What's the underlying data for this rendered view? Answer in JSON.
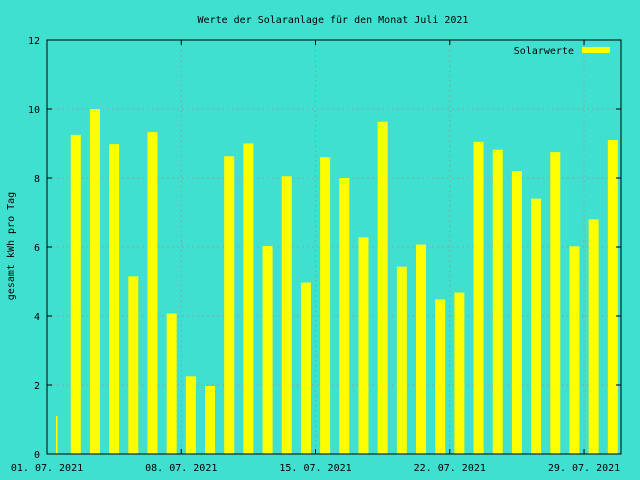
{
  "chart_data": {
    "type": "bar",
    "title": "Werte der Solaranlage für den Monat Juli 2021",
    "xlabel": "",
    "ylabel": "gesamt kWh pro Tag",
    "ylim": [
      0,
      12
    ],
    "yticks": [
      "0",
      "2",
      "4",
      "6",
      "8",
      "10",
      "12"
    ],
    "xtick_labels": [
      "01. 07. 2021",
      "08. 07. 2021",
      "15. 07. 2021",
      "22. 07. 2021",
      "29. 07. 2021"
    ],
    "grid": true,
    "legend_position": "top-right",
    "bar_color": "#ffff00",
    "background_color": "#40e0d0",
    "series": [
      {
        "name": "Solarwerte",
        "x": [
          "01. 07. 2021",
          "02. 07. 2021",
          "03. 07. 2021",
          "04. 07. 2021",
          "05. 07. 2021",
          "06. 07. 2021",
          "07. 07. 2021",
          "08. 07. 2021",
          "09. 07. 2021",
          "10. 07. 2021",
          "11. 07. 2021",
          "12. 07. 2021",
          "13. 07. 2021",
          "14. 07. 2021",
          "15. 07. 2021",
          "16. 07. 2021",
          "17. 07. 2021",
          "18. 07. 2021",
          "19. 07. 2021",
          "20. 07. 2021",
          "21. 07. 2021",
          "22. 07. 2021",
          "23. 07. 2021",
          "24. 07. 2021",
          "25. 07. 2021",
          "26. 07. 2021",
          "27. 07. 2021",
          "28. 07. 2021",
          "29. 07. 2021",
          "30. 07. 2021",
          "31. 07. 2021"
        ],
        "values": [
          1.1,
          9.25,
          10.0,
          8.98,
          5.15,
          9.33,
          4.07,
          2.25,
          1.97,
          8.63,
          9.0,
          6.03,
          8.05,
          4.97,
          8.6,
          8.0,
          6.28,
          9.63,
          5.43,
          6.07,
          4.48,
          4.68,
          9.05,
          8.82,
          8.2,
          7.4,
          8.75,
          6.02,
          6.8,
          9.1,
          0
        ]
      }
    ]
  }
}
